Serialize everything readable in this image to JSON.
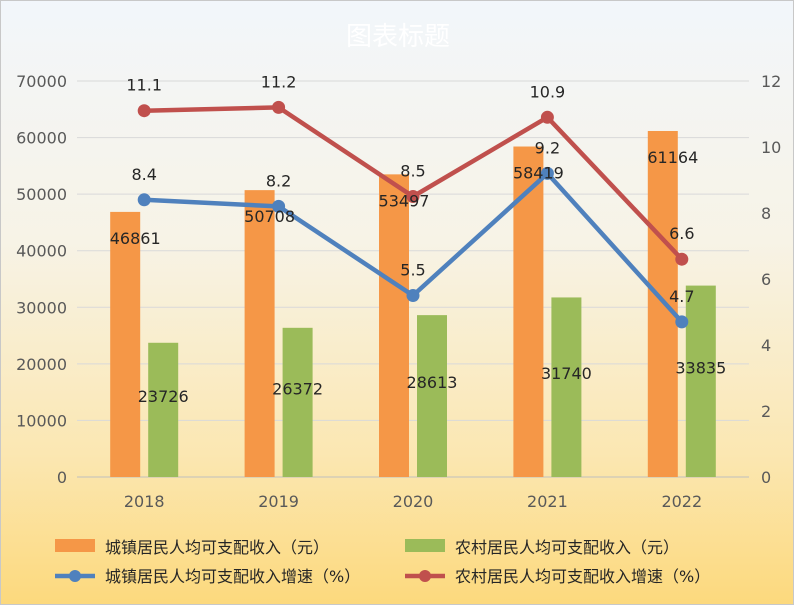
{
  "chart_data": {
    "type": "bar",
    "title": "图表标题",
    "categories": [
      "2018",
      "2019",
      "2020",
      "2021",
      "2022"
    ],
    "ylim": [
      0,
      70000
    ],
    "yticks": [
      "0",
      "10000",
      "20000",
      "30000",
      "40000",
      "50000",
      "60000",
      "70000"
    ],
    "y2lim": [
      0,
      12
    ],
    "y2ticks": [
      "0",
      "2",
      "4",
      "6",
      "8",
      "10",
      "12"
    ],
    "grid": true,
    "legend_position": "bottom",
    "series": [
      {
        "name": "城镇居民人均可支配收入（元）",
        "kind": "bar",
        "axis": "left",
        "color": "#f59747",
        "values": [
          46861,
          50708,
          53497,
          58419,
          61164
        ],
        "labels": [
          "46861",
          "50708",
          "53497",
          "58419",
          "61164"
        ]
      },
      {
        "name": "农村居民人均可支配收入（元）",
        "kind": "bar",
        "axis": "left",
        "color": "#9bbb59",
        "values": [
          23726,
          26372,
          28613,
          31740,
          33835
        ],
        "labels": [
          "23726",
          "26372",
          "28613",
          "31740",
          "33835"
        ]
      },
      {
        "name": "城镇居民人均可支配收入增速（%）",
        "kind": "line",
        "axis": "right",
        "color": "#4f81bd",
        "values": [
          8.4,
          8.2,
          5.5,
          9.2,
          4.7
        ],
        "labels": [
          "8.4",
          "8.2",
          "5.5",
          "9.2",
          "4.7"
        ]
      },
      {
        "name": "农村居民人均可支配收入增速（%）",
        "kind": "line",
        "axis": "right",
        "color": "#c0504d",
        "values": [
          11.1,
          11.2,
          8.5,
          10.9,
          6.6
        ],
        "labels": [
          "11.1",
          "11.2",
          "8.5",
          "10.9",
          "6.6"
        ]
      }
    ]
  }
}
